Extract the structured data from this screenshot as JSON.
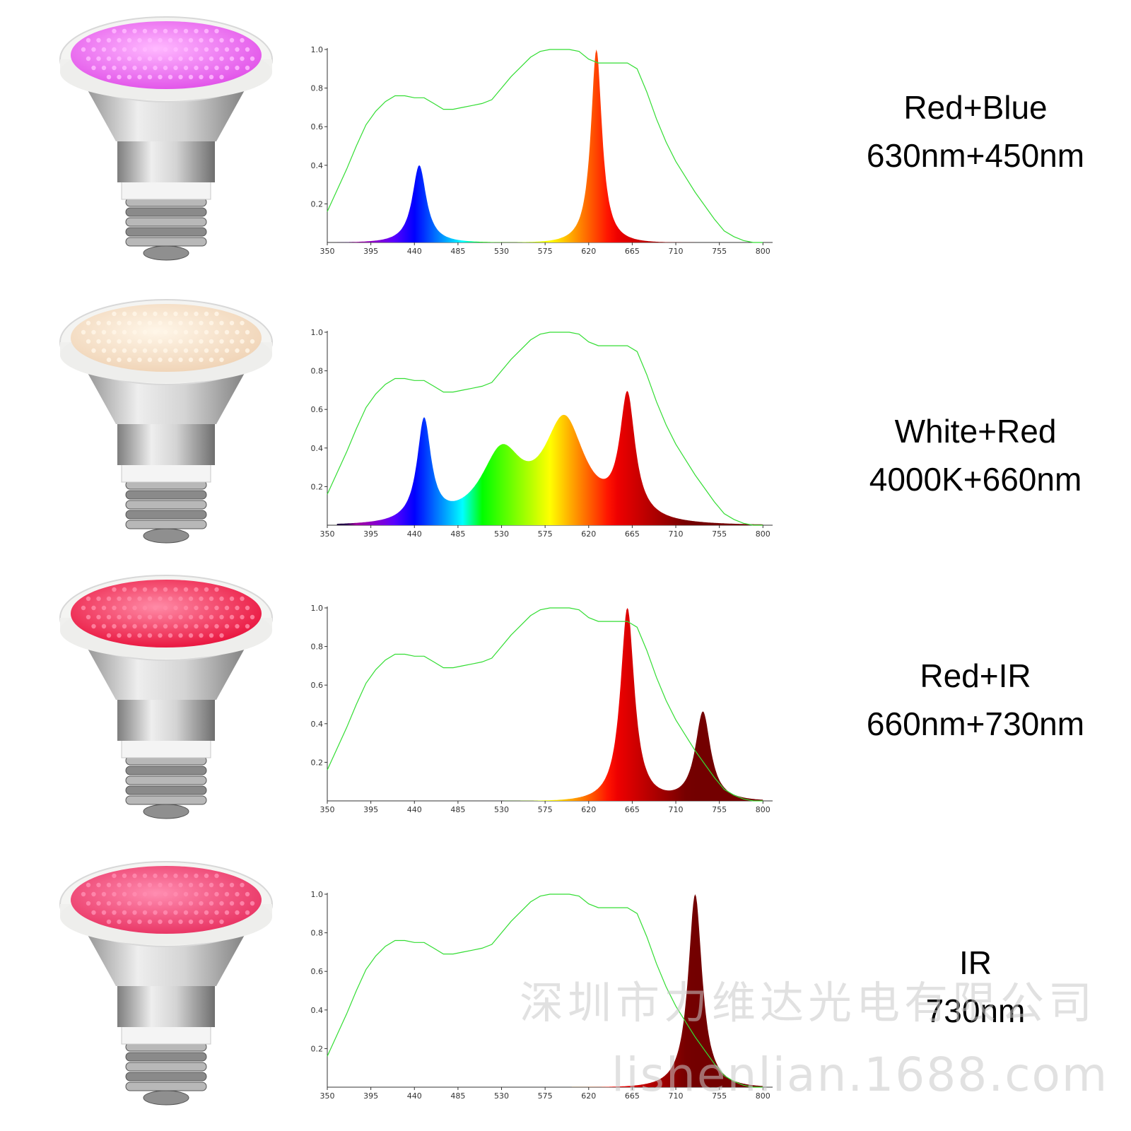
{
  "products": [
    {
      "name": "Red+Blue",
      "spec": "630nm+450nm",
      "led_color": "#e04ee8",
      "led_highlight": "#ffb8ff"
    },
    {
      "name": "White+Red",
      "spec": "4000K+660nm",
      "led_color": "#efd2b4",
      "led_highlight": "#fff6e8"
    },
    {
      "name": "Red+IR",
      "spec": "660nm+730nm",
      "led_color": "#e8103a",
      "led_highlight": "#ff8aa6"
    },
    {
      "name": "IR",
      "spec": "730nm",
      "led_color": "#e83060",
      "led_highlight": "#ff8cb0"
    }
  ],
  "watermark": {
    "company": "深圳市力维达光电有限公司",
    "site": "lishenlian.1688.com"
  },
  "chart_data": [
    {
      "type": "area",
      "x_ticks": [
        350,
        395,
        440,
        485,
        530,
        575,
        620,
        665,
        710,
        755,
        800
      ],
      "y_ticks": [
        0.2,
        0.4,
        0.6,
        0.8,
        1.0
      ],
      "xlim": [
        350,
        810
      ],
      "ylim": [
        0,
        1.0
      ],
      "series": [
        {
          "peaks": [
            {
              "center": 445,
              "height": 0.4,
              "width": 10
            },
            {
              "center": 628,
              "height": 1.0,
              "width": 8
            }
          ]
        }
      ]
    },
    {
      "type": "area",
      "x_ticks": [
        350,
        395,
        440,
        485,
        530,
        575,
        620,
        665,
        710,
        755,
        800
      ],
      "y_ticks": [
        0.2,
        0.4,
        0.6,
        0.8,
        1.0
      ],
      "xlim": [
        350,
        810
      ],
      "ylim": [
        0,
        1.0
      ],
      "series": [
        {
          "peaks": [
            {
              "center": 450,
              "height": 0.52,
              "width": 10
            },
            {
              "center": 530,
              "height": 0.35,
              "width": 30
            },
            {
              "center": 595,
              "height": 0.52,
              "width": 30
            },
            {
              "center": 660,
              "height": 0.62,
              "width": 11
            }
          ]
        }
      ]
    },
    {
      "type": "area",
      "x_ticks": [
        350,
        395,
        440,
        485,
        530,
        575,
        620,
        665,
        710,
        755,
        800
      ],
      "y_ticks": [
        0.2,
        0.4,
        0.6,
        0.8,
        1.0
      ],
      "xlim": [
        350,
        810
      ],
      "ylim": [
        0,
        1.0
      ],
      "series": [
        {
          "peaks": [
            {
              "center": 660,
              "height": 1.0,
              "width": 10
            },
            {
              "center": 738,
              "height": 0.46,
              "width": 11
            }
          ]
        }
      ]
    },
    {
      "type": "area",
      "x_ticks": [
        350,
        395,
        440,
        485,
        530,
        575,
        620,
        665,
        710,
        755,
        800
      ],
      "y_ticks": [
        0.2,
        0.4,
        0.6,
        0.8,
        1.0
      ],
      "xlim": [
        350,
        810
      ],
      "ylim": [
        0,
        1.0
      ],
      "series": [
        {
          "peaks": [
            {
              "center": 730,
              "height": 1.0,
              "width": 10
            }
          ]
        }
      ]
    }
  ],
  "reference_curve": {
    "color": "#33dd33",
    "x": [
      350,
      360,
      370,
      380,
      390,
      400,
      410,
      420,
      430,
      440,
      450,
      460,
      470,
      480,
      490,
      500,
      510,
      520,
      530,
      540,
      550,
      560,
      570,
      580,
      590,
      600,
      610,
      620,
      630,
      640,
      650,
      660,
      670,
      680,
      690,
      700,
      710,
      720,
      730,
      740,
      750,
      760,
      770,
      780,
      790,
      800
    ],
    "y": [
      0.16,
      0.27,
      0.38,
      0.5,
      0.61,
      0.68,
      0.73,
      0.76,
      0.76,
      0.75,
      0.75,
      0.72,
      0.69,
      0.69,
      0.7,
      0.71,
      0.72,
      0.74,
      0.8,
      0.86,
      0.91,
      0.96,
      0.99,
      1.0,
      1.0,
      1.0,
      0.99,
      0.95,
      0.93,
      0.93,
      0.93,
      0.93,
      0.9,
      0.78,
      0.64,
      0.52,
      0.42,
      0.34,
      0.26,
      0.19,
      0.12,
      0.06,
      0.03,
      0.01,
      0.0,
      0.0
    ]
  }
}
